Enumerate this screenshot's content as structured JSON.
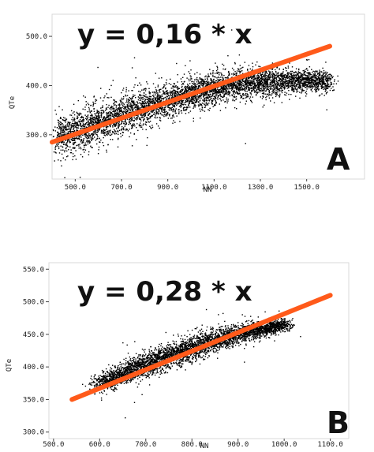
{
  "chart_data": [
    {
      "type": "scatter",
      "panel_letter": "A",
      "equation": "y = 0,16 * x",
      "xlabel": "NN",
      "ylabel": "QTe",
      "x_ticks": [
        "500.0",
        "700.0",
        "900.0",
        "1100.0",
        "1300.0",
        "1500.0"
      ],
      "y_ticks": [
        "300.0",
        "400.0",
        "500.0"
      ],
      "xlim": [
        400,
        1750
      ],
      "ylim": [
        210,
        545
      ],
      "regression_line": {
        "color": "#ff5a1a",
        "x": [
          400,
          1600
        ],
        "y": [
          285,
          480
        ]
      },
      "cloud_color": "#000000",
      "cloud_centerline": {
        "x": [
          420,
          600,
          800,
          1000,
          1200,
          1400,
          1600
        ],
        "y": [
          295,
          325,
          355,
          385,
          405,
          410,
          410
        ]
      },
      "cloud_spread": [
        40,
        40,
        38,
        35,
        30,
        25,
        20
      ]
    },
    {
      "type": "scatter",
      "panel_letter": "B",
      "equation": "y = 0,28 * x",
      "xlabel": "NN",
      "ylabel": "QTe",
      "x_ticks": [
        "500.0",
        "600.0",
        "700.0",
        "800.0",
        "900.0",
        "1000.0",
        "1100.0"
      ],
      "y_ticks": [
        "300.0",
        "350.0",
        "400.0",
        "450.0",
        "500.0",
        "550.0"
      ],
      "xlim": [
        490,
        1140
      ],
      "ylim": [
        290,
        560
      ],
      "regression_line": {
        "color": "#ff5a1a",
        "x": [
          540,
          1100
        ],
        "y": [
          350,
          510
        ]
      },
      "cloud_color": "#000000",
      "cloud_centerline": {
        "x": [
          600,
          680,
          760,
          840,
          920,
          1000
        ],
        "y": [
          375,
          400,
          420,
          440,
          455,
          465
        ]
      },
      "cloud_spread": [
        14,
        18,
        20,
        18,
        14,
        10
      ]
    }
  ]
}
